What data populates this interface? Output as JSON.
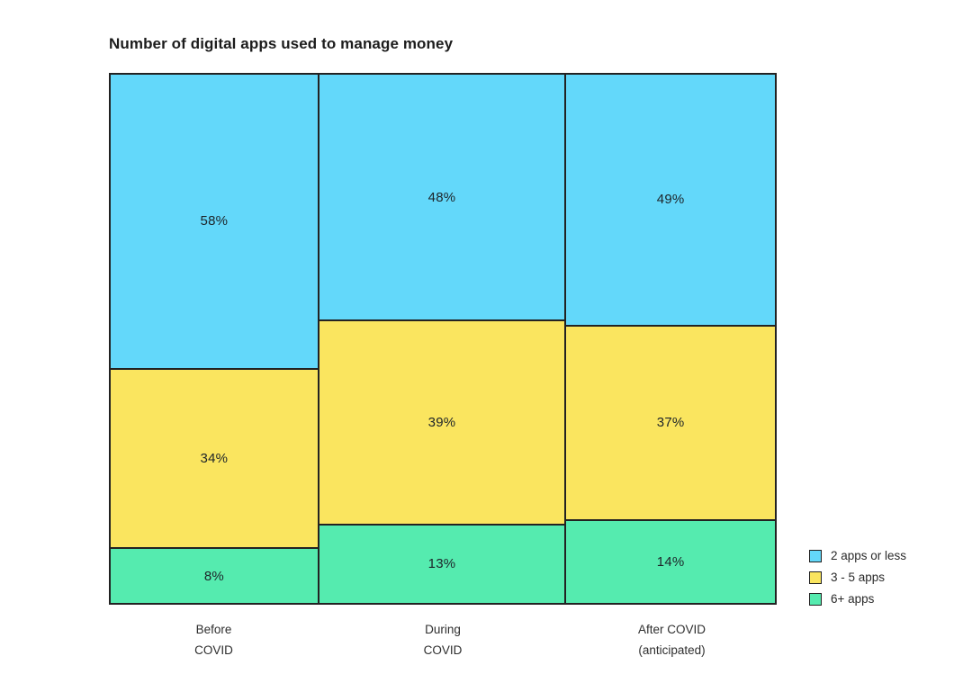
{
  "title": "Number of digital apps used to manage money",
  "value_suffix": "%",
  "chart_data": {
    "type": "bar",
    "subtype": "100-percent-stacked-column",
    "title": "Number of digital apps used to manage money",
    "categories": [
      "Before COVID",
      "During COVID",
      "After COVID (anticipated)"
    ],
    "category_label_lines": [
      [
        "Before",
        "COVID"
      ],
      [
        "During",
        "COVID"
      ],
      [
        "After COVID",
        "(anticipated)"
      ]
    ],
    "column_width_pct": [
      31.4,
      37.2,
      31.4
    ],
    "series": [
      {
        "name": "2 apps or less",
        "color": "#63d8fa",
        "values": [
          58,
          48,
          49
        ]
      },
      {
        "name": "3 - 5 apps",
        "color": "#fae55f",
        "values": [
          34,
          39,
          37
        ]
      },
      {
        "name": "6+ apps",
        "color": "#55ebaf",
        "values": [
          8,
          13,
          14
        ]
      }
    ],
    "data_labels": [
      [
        "58%",
        "48%",
        "49%"
      ],
      [
        "34%",
        "39%",
        "37%"
      ],
      [
        "8%",
        "13%",
        "14%"
      ]
    ],
    "xlabel": "",
    "ylabel": "",
    "ylim": [
      0,
      100
    ],
    "grid": false,
    "legend_position": "bottom-right",
    "border_color": "#222222",
    "background_color": "#ffffff",
    "label_text_color": "#1d2429"
  },
  "legend": {
    "items": [
      {
        "label": "2 apps or less",
        "color": "#63d8fa"
      },
      {
        "label": "3 - 5 apps",
        "color": "#fae55f"
      },
      {
        "label": "6+ apps",
        "color": "#55ebaf"
      }
    ]
  }
}
